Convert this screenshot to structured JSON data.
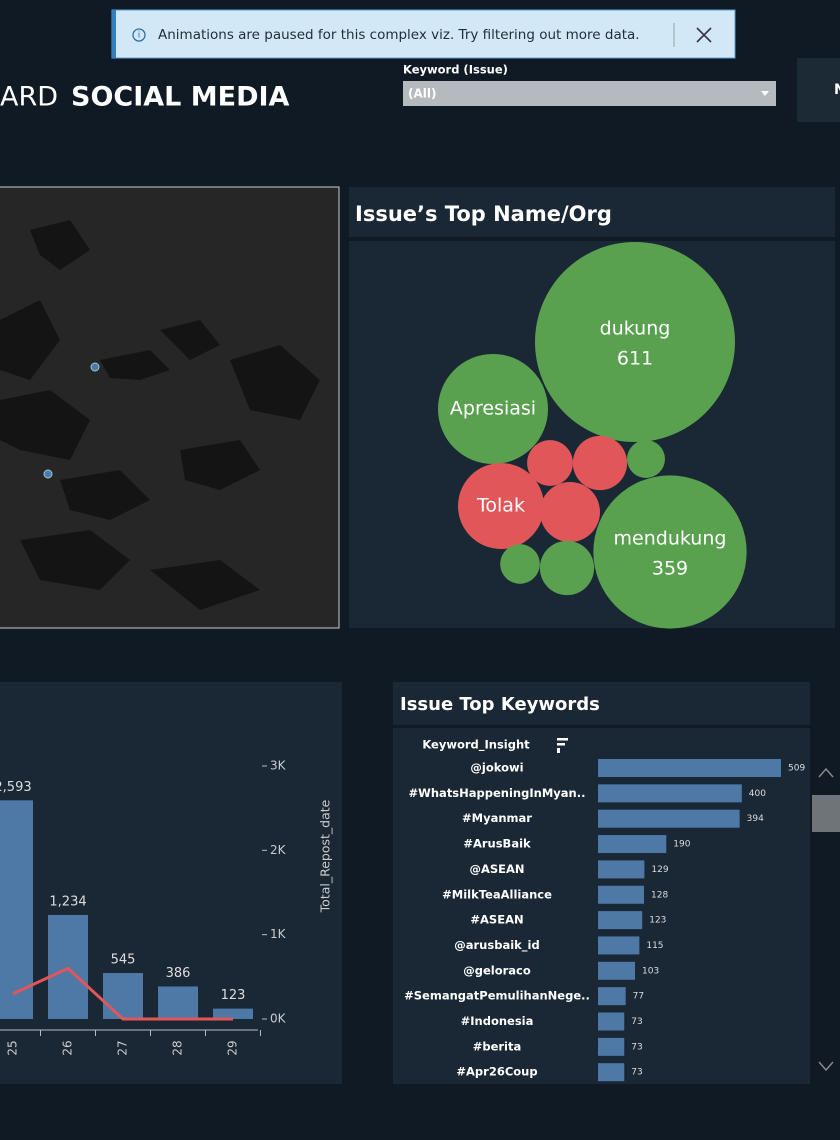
{
  "notification": {
    "text": "Animations are paused for this complex viz. Try filtering out more data."
  },
  "header": {
    "title_light": "ARD",
    "title_bold": "SOCIAL MEDIA",
    "button": "N"
  },
  "filter": {
    "label": "Keyword (Issue)",
    "value": "(All)"
  },
  "bubble_chart": {
    "type": "bubble",
    "title": "Issue’s Top Name/Org",
    "labels": [
      "dukung",
      "mendukung",
      "Apresiasi",
      "Tolak",
      null,
      null,
      null,
      null,
      null,
      null
    ],
    "values": [
      611,
      359,
      185,
      113,
      55,
      45,
      32,
      22,
      24,
      45
    ],
    "value_labels": [
      "611",
      "359",
      null,
      null,
      null,
      null,
      null,
      null,
      null,
      null
    ],
    "colors": [
      "#59a14f",
      "#59a14f",
      "#59a14f",
      "#e15759",
      "#e15759",
      "#e15759",
      "#e15759",
      "#59a14f",
      "#59a14f",
      "#59a14f"
    ]
  },
  "repost_chart": {
    "type": "bar-line",
    "categories": [
      "25",
      "26",
      "27",
      "28",
      "29"
    ],
    "series": [
      {
        "name": "Total_Repost_date",
        "type": "bar",
        "color": "#4e79a7",
        "values": [
          2593,
          1234,
          545,
          386,
          123
        ],
        "value_labels": [
          "2,593",
          "1,234",
          "545",
          "386",
          "123"
        ]
      },
      {
        "type": "line",
        "color": "#e15759",
        "values": [
          300,
          600,
          0,
          0,
          0
        ]
      }
    ],
    "y_label": "Total_Repost_date",
    "ylim": [
      0,
      3000
    ],
    "yticks": [
      {
        "value": 0,
        "label": "0K"
      },
      {
        "value": 1000,
        "label": "1K"
      },
      {
        "value": 2000,
        "label": "2K"
      },
      {
        "value": 3000,
        "label": "3K"
      }
    ]
  },
  "keywords_chart": {
    "type": "hbar",
    "title": "Issue Top Keywords",
    "column_header": "Keyword_Insight",
    "color": "#4e79a7",
    "categories": [
      "@jokowi",
      "#WhatsHappeningInMyan..",
      "#Myanmar",
      "#ArusBaik",
      "@ASEAN",
      "#MilkTeaAlliance",
      "#ASEAN",
      "@arusbaik_id",
      "@geloraco",
      "#SemangatPemulihanNege..",
      "#Indonesia",
      "#berita",
      "#Apr26Coup"
    ],
    "values": [
      509,
      400,
      394,
      190,
      129,
      128,
      123,
      115,
      103,
      77,
      73,
      73,
      73
    ]
  }
}
